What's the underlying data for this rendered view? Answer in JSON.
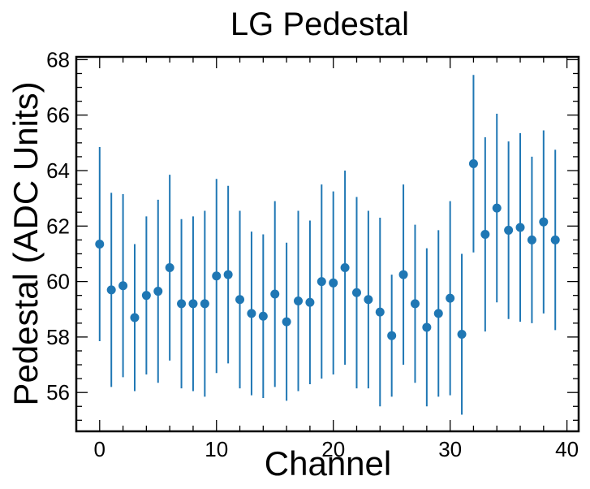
{
  "chart_data": {
    "type": "scatter",
    "title": "LG Pedestal",
    "xlabel": "Channel",
    "ylabel": "Pedestal (ADC Units)",
    "xlim": [
      -2,
      41
    ],
    "ylim": [
      54.6,
      68.1
    ],
    "x_ticks": [
      0,
      10,
      20,
      30,
      40
    ],
    "y_ticks": [
      56,
      58,
      60,
      62,
      64,
      66,
      68
    ],
    "grid": false,
    "legend": "none",
    "marker_color": "#1f77b4",
    "series": [
      {
        "x": [
          0,
          1,
          2,
          3,
          4,
          5,
          6,
          7,
          8,
          9,
          10,
          11,
          12,
          13,
          14,
          15,
          16,
          17,
          18,
          19,
          20,
          21,
          22,
          23,
          24,
          25,
          26,
          27,
          28,
          29,
          30,
          31,
          32,
          33,
          34,
          35,
          36,
          37,
          38,
          39
        ],
        "y": [
          61.35,
          59.7,
          59.85,
          58.7,
          59.5,
          59.65,
          60.5,
          59.2,
          59.2,
          59.2,
          60.2,
          60.25,
          59.35,
          58.85,
          58.75,
          59.55,
          58.55,
          59.3,
          59.25,
          60.0,
          59.95,
          60.5,
          59.6,
          59.35,
          58.9,
          58.05,
          60.25,
          59.2,
          58.35,
          58.85,
          59.4,
          58.1,
          64.25,
          61.7,
          62.65,
          61.85,
          61.95,
          61.5,
          62.15,
          61.5
        ],
        "yerr": [
          3.5,
          3.5,
          3.3,
          2.65,
          2.85,
          3.3,
          3.35,
          3.05,
          3.15,
          3.35,
          3.5,
          3.2,
          3.2,
          2.95,
          2.95,
          3.35,
          2.85,
          3.25,
          2.95,
          3.5,
          3.3,
          3.5,
          3.45,
          3.2,
          3.4,
          2.2,
          3.25,
          2.85,
          2.85,
          3.0,
          3.5,
          2.9,
          3.2,
          3.5,
          3.4,
          3.2,
          3.4,
          3.0,
          3.3,
          3.25
        ]
      }
    ]
  }
}
